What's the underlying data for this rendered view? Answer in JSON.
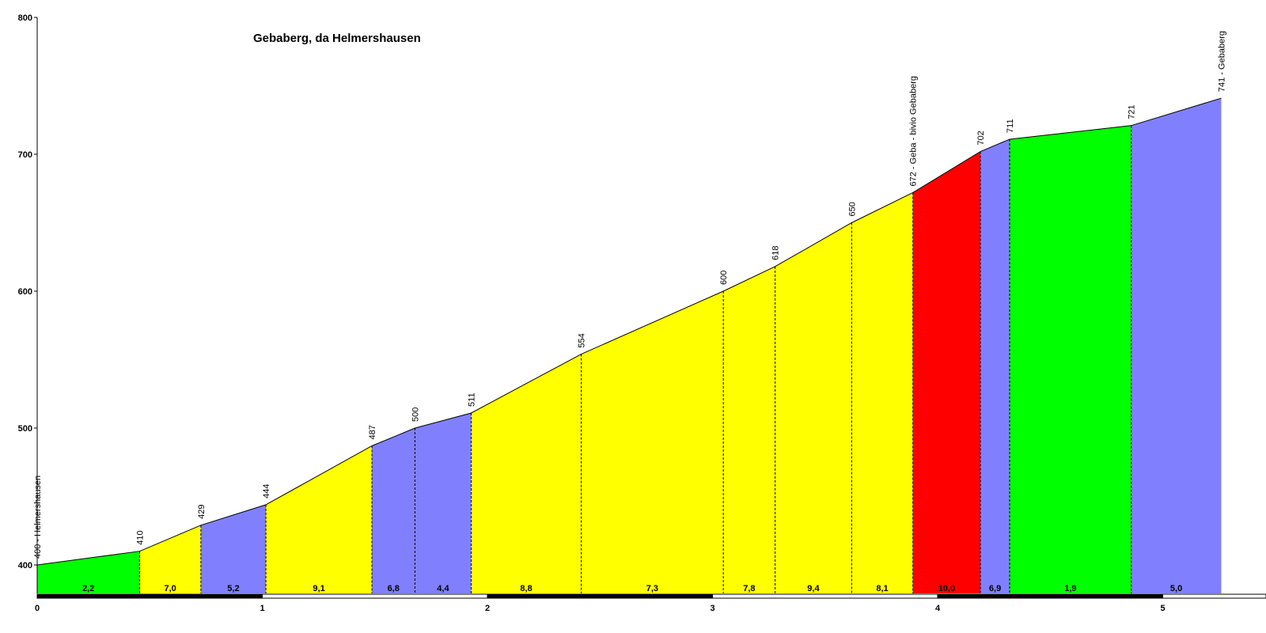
{
  "chart_data": {
    "type": "area",
    "title": "Gebaberg, da Helmershausen",
    "xlabel": "",
    "ylabel": "",
    "xlim": [
      0,
      5.5
    ],
    "ylim": [
      380,
      800
    ],
    "xticks": [
      0,
      1,
      2,
      3,
      4,
      5
    ],
    "yticks": [
      400,
      500,
      600,
      700,
      800
    ],
    "points": [
      {
        "x": 0.0,
        "y": 400,
        "label": "400 - Helmershausen"
      },
      {
        "x": 0.455,
        "y": 410,
        "label": "410"
      },
      {
        "x": 0.727,
        "y": 429,
        "label": "429"
      },
      {
        "x": 1.016,
        "y": 444,
        "label": "444"
      },
      {
        "x": 1.487,
        "y": 487,
        "label": "487"
      },
      {
        "x": 1.678,
        "y": 500,
        "label": "500"
      },
      {
        "x": 1.928,
        "y": 511,
        "label": "511"
      },
      {
        "x": 2.417,
        "y": 554,
        "label": "554"
      },
      {
        "x": 3.048,
        "y": 600,
        "label": "600"
      },
      {
        "x": 3.278,
        "y": 618,
        "label": "618"
      },
      {
        "x": 3.618,
        "y": 650,
        "label": "650"
      },
      {
        "x": 3.89,
        "y": 672,
        "label": "672 - Geba - bivio Gebaberg"
      },
      {
        "x": 4.19,
        "y": 702,
        "label": "702"
      },
      {
        "x": 4.32,
        "y": 711,
        "label": "711"
      },
      {
        "x": 4.86,
        "y": 721,
        "label": "721"
      },
      {
        "x": 5.26,
        "y": 741,
        "label": "741 - Gebaberg"
      }
    ],
    "segments": [
      {
        "gradient": "2,2",
        "color": "#00ff00"
      },
      {
        "gradient": "7,0",
        "color": "#ffff00"
      },
      {
        "gradient": "5,2",
        "color": "#8080ff"
      },
      {
        "gradient": "9,1",
        "color": "#ffff00"
      },
      {
        "gradient": "6,8",
        "color": "#8080ff"
      },
      {
        "gradient": "4,4",
        "color": "#8080ff"
      },
      {
        "gradient": "8,8",
        "color": "#ffff00"
      },
      {
        "gradient": "7,3",
        "color": "#ffff00"
      },
      {
        "gradient": "7,8",
        "color": "#ffff00"
      },
      {
        "gradient": "9,4",
        "color": "#ffff00"
      },
      {
        "gradient": "8,1",
        "color": "#ffff00"
      },
      {
        "gradient": "10,0",
        "color": "#ff0000"
      },
      {
        "gradient": "6,9",
        "color": "#8080ff"
      },
      {
        "gradient": "1,9",
        "color": "#00ff00"
      },
      {
        "gradient": "5,0",
        "color": "#8080ff"
      }
    ],
    "grid": false,
    "legend": "none"
  }
}
